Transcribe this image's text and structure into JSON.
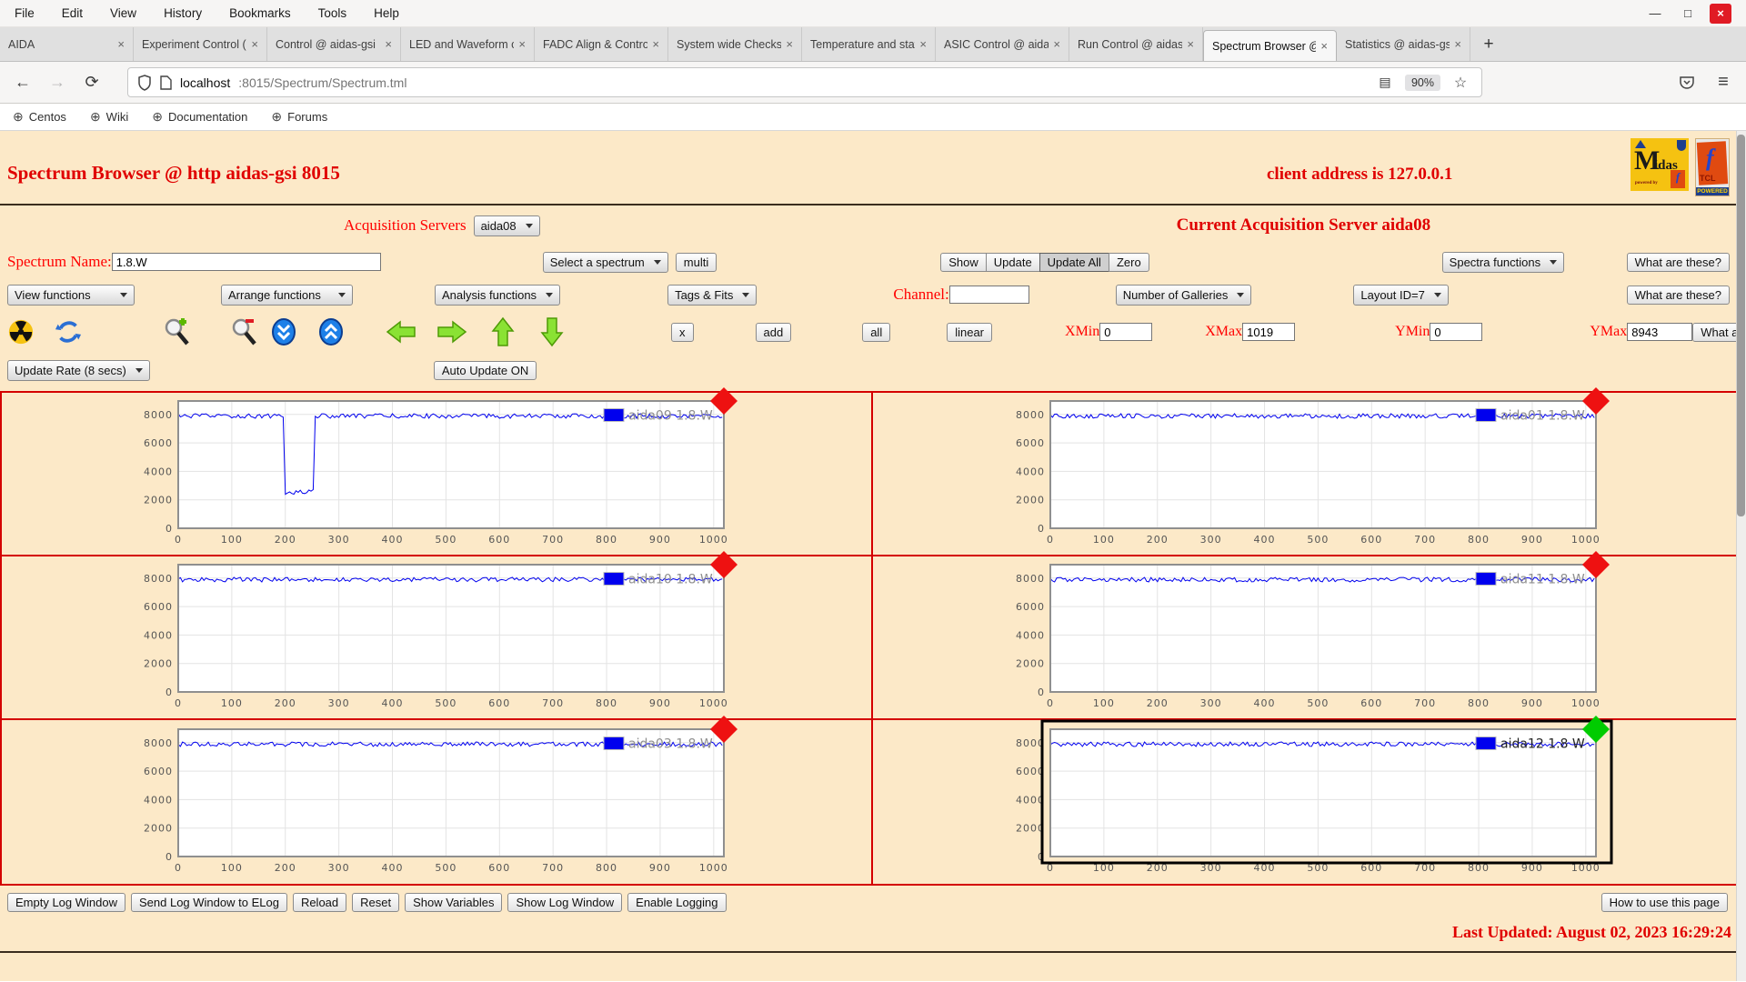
{
  "icons": {
    "close": "×",
    "globe": "⊕",
    "plus": "+",
    "back": "←",
    "forward": "→",
    "reload": "⟳",
    "star": "☆",
    "reader": "▤",
    "menu": "≡",
    "minimize": "—",
    "maximize": "□",
    "window_close": "×"
  },
  "browser": {
    "menu": [
      "File",
      "Edit",
      "View",
      "History",
      "Bookmarks",
      "Tools",
      "Help"
    ],
    "tabs": [
      {
        "label": "AIDA"
      },
      {
        "label": "Experiment Control ("
      },
      {
        "label": "Control @ aidas-gsi"
      },
      {
        "label": "LED and Waveform c"
      },
      {
        "label": "FADC Align & Contro"
      },
      {
        "label": "System wide Checks"
      },
      {
        "label": "Temperature and stat"
      },
      {
        "label": "ASIC Control @ aidas"
      },
      {
        "label": "Run Control @ aidas-"
      },
      {
        "label": "Spectrum Browser @",
        "active": true
      },
      {
        "label": "Statistics @ aidas-gsi"
      }
    ],
    "url_host": "localhost",
    "url_rest": ":8015/Spectrum/Spectrum.tml",
    "zoom_level": "90%",
    "bookmarks": [
      "Centos",
      "Wiki",
      "Documentation",
      "Forums"
    ]
  },
  "header": {
    "title": "Spectrum Browser @ http aidas-gsi 8015",
    "client_address": "client address is 127.0.0.1"
  },
  "logos": {
    "midas_m": "M",
    "midas_idas": "idas",
    "midas_powered": "powered by",
    "midas_f": "f",
    "tcl_feather": "f",
    "tcl_text": "TCL",
    "tcl_powered": "POWERED"
  },
  "acquisition": {
    "label": "Acquisition Servers",
    "server": "aida08",
    "current": "Current Acquisition Server aida08"
  },
  "spectrum_row": {
    "name_label": "Spectrum Name:",
    "name_value": "1.8.W",
    "select_spectrum": "Select a spectrum",
    "multi": "multi",
    "show": "Show",
    "update": "Update",
    "update_all": "Update All",
    "zero": "Zero",
    "spectra_functions": "Spectra functions"
  },
  "functions_row": {
    "view": "View functions",
    "arrange": "Arrange functions",
    "analysis": "Analysis functions",
    "tags": "Tags & Fits",
    "channel_label": "Channel:",
    "channel_value": "",
    "galleries": "Number of Galleries",
    "layout": "Layout ID=7"
  },
  "toolbar": {
    "x": "x",
    "add": "add",
    "all": "all",
    "linear": "linear",
    "xmin_label": "XMin",
    "xmin": "0",
    "xmax_label": "XMax",
    "xmax": "1019",
    "ymin_label": "YMin",
    "ymin": "0",
    "ymax_label": "YMax",
    "ymax": "8943"
  },
  "update_row": {
    "rate": "Update Rate (8 secs)",
    "auto_update": "Auto Update ON"
  },
  "what_are_these": "What are these?",
  "chart_data": {
    "type": "line",
    "x_range": [
      0,
      1019
    ],
    "y_range": [
      0,
      8943
    ],
    "xticks": [
      0,
      100,
      200,
      300,
      400,
      500,
      600,
      700,
      800,
      900,
      1000
    ],
    "yticks": [
      0,
      2000,
      4000,
      6000,
      8000
    ],
    "trace_color": "#0000ee",
    "baseline": 7890,
    "noise_amplitude": 160,
    "grid_on": true,
    "marker_colors": {
      "red": "#ee1111",
      "green": "#00cc00"
    },
    "cells": [
      {
        "legend": "aida09 1.8.W",
        "marker": "red",
        "dip": {
          "x_start": 197,
          "x_end": 252,
          "level": 2450
        }
      },
      {
        "legend": "aida01 1.8.W",
        "marker": "red"
      },
      {
        "legend": "aida10 1.8.W",
        "marker": "red"
      },
      {
        "legend": "aida11 1.8.W",
        "marker": "red"
      },
      {
        "legend": "aida03 1.8.W",
        "marker": "red"
      },
      {
        "legend": "aida12 1.8 W",
        "marker": "green",
        "selected": true
      }
    ]
  },
  "footer": {
    "buttons": [
      "Empty Log Window",
      "Send Log Window to ELog",
      "Reload",
      "Reset",
      "Show Variables",
      "Show Log Window",
      "Enable Logging"
    ],
    "help": "How to use this page",
    "last_updated": "Last Updated: August 02, 2023 16:29:24"
  }
}
